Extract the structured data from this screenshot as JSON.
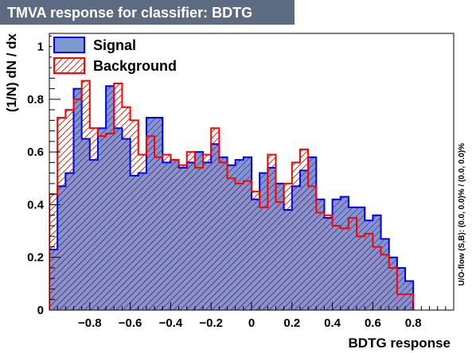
{
  "chart_data": {
    "type": "bar",
    "title": "TMVA response for classifier: BDTG",
    "xlabel": "BDTG response",
    "ylabel": "(1/N) dN / dx",
    "side_note": "U/O-flow (S,B): (0.0, 0.0)% / (0.0, 0.0)%",
    "xlim": [
      -1.0,
      1.0
    ],
    "ylim": [
      0,
      1.05
    ],
    "x_ticks": [
      -0.8,
      -0.6,
      -0.4,
      -0.2,
      0,
      0.2,
      0.4,
      0.6,
      0.8
    ],
    "x_tick_labels": [
      "−0.8",
      "−0.6",
      "−0.4",
      "−0.2",
      "0",
      "0.2",
      "0.4",
      "0.6",
      "0.8"
    ],
    "y_ticks": [
      0,
      0.2,
      0.4,
      0.6,
      0.8,
      1
    ],
    "y_tick_labels": [
      "0",
      "0.2",
      "0.4",
      "0.6",
      "0.8",
      "1"
    ],
    "grid": false,
    "legend_position": "top-left",
    "bin_edges_start": -1.0,
    "bin_width": 0.04,
    "series": [
      {
        "name": "Signal",
        "color": "#0000ee",
        "fill": "#7d99d1",
        "values": [
          0.23,
          0.47,
          0.52,
          0.84,
          0.65,
          0.57,
          0.69,
          0.85,
          0.69,
          0.65,
          0.51,
          0.52,
          0.73,
          0.73,
          0.56,
          0.57,
          0.54,
          0.56,
          0.6,
          0.56,
          0.63,
          0.58,
          0.55,
          0.57,
          0.58,
          0.42,
          0.52,
          0.54,
          0.48,
          0.38,
          0.47,
          0.53,
          0.58,
          0.42,
          0.35,
          0.42,
          0.43,
          0.39,
          0.39,
          0.34,
          0.36,
          0.27,
          0.2,
          0.16,
          0.11
        ]
      },
      {
        "name": "Background",
        "color": "#ff0000",
        "fill": "#ff0000",
        "values": [
          0.44,
          0.73,
          0.76,
          0.8,
          0.87,
          0.69,
          0.66,
          0.67,
          0.86,
          0.77,
          0.72,
          0.59,
          0.66,
          0.58,
          0.59,
          0.57,
          0.55,
          0.6,
          0.54,
          0.59,
          0.69,
          0.56,
          0.5,
          0.48,
          0.49,
          0.45,
          0.39,
          0.59,
          0.41,
          0.48,
          0.56,
          0.61,
          0.47,
          0.37,
          0.36,
          0.32,
          0.31,
          0.35,
          0.28,
          0.29,
          0.24,
          0.21,
          0.16,
          0.06,
          0.06
        ]
      }
    ]
  }
}
